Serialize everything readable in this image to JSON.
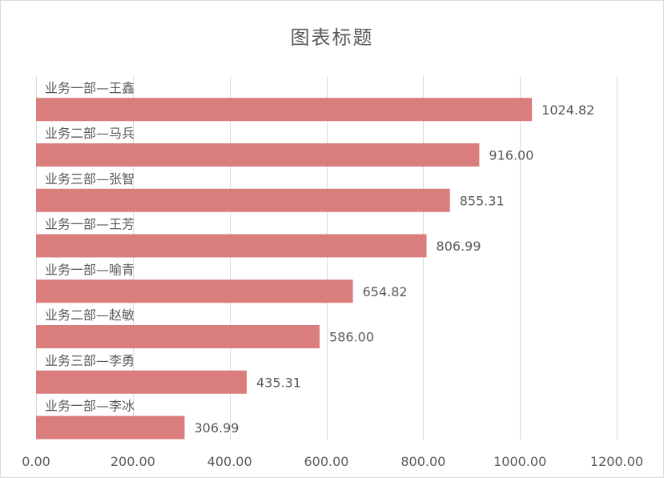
{
  "chart_data": {
    "type": "bar",
    "orientation": "horizontal",
    "title": "图表标题",
    "categories": [
      "业务一部—王鑫",
      "业务二部—马兵",
      "业务三部—张智",
      "业务一部—王芳",
      "业务一部—喻青",
      "业务二部—赵敏",
      "业务三部—李勇",
      "业务一部—李冰"
    ],
    "values": [
      1024.82,
      916.0,
      855.31,
      806.99,
      654.82,
      586.0,
      435.31,
      306.99
    ],
    "value_labels": [
      "1024.82",
      "916.00",
      "855.31",
      "806.99",
      "654.82",
      "586.00",
      "435.31",
      "306.99"
    ],
    "xlim": [
      0,
      1200
    ],
    "ticks": [
      0,
      200,
      400,
      600,
      800,
      1000,
      1200
    ],
    "tick_labels": [
      "0.00",
      "200.00",
      "400.00",
      "600.00",
      "800.00",
      "1000.00",
      "1200.00"
    ],
    "xlabel": "",
    "ylabel": "",
    "grid": true,
    "legend": "none",
    "bar_color": "#d97d7d"
  }
}
